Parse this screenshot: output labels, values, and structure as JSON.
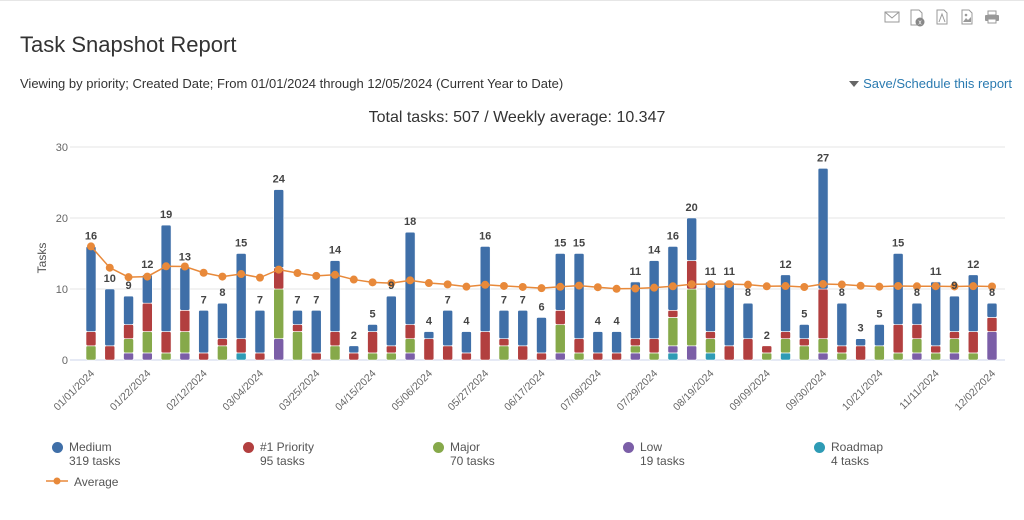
{
  "header": {
    "title": "Task Snapshot Report",
    "subtitle": "Viewing by priority; Created Date; From 01/01/2024 through 12/05/2024 (Current Year to Date)",
    "save_link": "Save/Schedule this report",
    "toolbar_icons": [
      "mail-icon",
      "excel-icon",
      "pdf-icon",
      "image-icon",
      "print-icon"
    ]
  },
  "chart_data": {
    "type": "bar",
    "stacked": true,
    "title": "Total tasks: 507 / Weekly average: 10.347",
    "ylabel": "Tasks",
    "xlabel": "",
    "ylim": [
      0,
      30
    ],
    "yticks": [
      "0",
      "10",
      "20",
      "30"
    ],
    "grid": true,
    "legend_position": "bottom",
    "categories": [
      "01/01/2024",
      "01/08/2024",
      "01/15/2024",
      "01/22/2024",
      "01/29/2024",
      "02/05/2024",
      "02/12/2024",
      "02/19/2024",
      "02/26/2024",
      "03/04/2024",
      "03/11/2024",
      "03/18/2024",
      "03/25/2024",
      "04/01/2024",
      "04/08/2024",
      "04/15/2024",
      "04/22/2024",
      "04/29/2024",
      "05/06/2024",
      "05/13/2024",
      "05/20/2024",
      "05/27/2024",
      "06/03/2024",
      "06/10/2024",
      "06/17/2024",
      "06/24/2024",
      "07/01/2024",
      "07/08/2024",
      "07/15/2024",
      "07/22/2024",
      "07/29/2024",
      "08/05/2024",
      "08/12/2024",
      "08/19/2024",
      "08/26/2024",
      "09/02/2024",
      "09/09/2024",
      "09/16/2024",
      "09/23/2024",
      "09/30/2024",
      "10/07/2024",
      "10/14/2024",
      "10/21/2024",
      "10/28/2024",
      "11/04/2024",
      "11/11/2024",
      "11/18/2024",
      "11/25/2024",
      "12/02/2024"
    ],
    "xtick_labels": [
      "01/01/2024",
      "01/22/2024",
      "02/12/2024",
      "03/04/2024",
      "03/25/2024",
      "04/15/2024",
      "05/06/2024",
      "05/27/2024",
      "06/17/2024",
      "07/08/2024",
      "07/29/2024",
      "08/19/2024",
      "09/09/2024",
      "09/30/2024",
      "10/21/2024",
      "11/11/2024",
      "12/02/2024"
    ],
    "totals": [
      16,
      10,
      9,
      12,
      19,
      13,
      7,
      8,
      15,
      7,
      24,
      7,
      7,
      14,
      2,
      5,
      9,
      18,
      4,
      7,
      4,
      16,
      7,
      7,
      6,
      15,
      15,
      4,
      4,
      11,
      14,
      16,
      20,
      11,
      11,
      8,
      2,
      12,
      5,
      27,
      8,
      3,
      5,
      15,
      8,
      11,
      9,
      12,
      8
    ],
    "series": [
      {
        "name": "Roadmap",
        "summary": "4 tasks",
        "color": "#2e9bb5",
        "values": [
          0,
          0,
          0,
          0,
          0,
          0,
          0,
          0,
          1,
          0,
          0,
          0,
          0,
          0,
          0,
          0,
          0,
          0,
          0,
          0,
          0,
          0,
          0,
          0,
          0,
          0,
          0,
          0,
          0,
          0,
          0,
          1,
          0,
          1,
          0,
          0,
          0,
          1,
          0,
          0,
          0,
          0,
          0,
          0,
          0,
          0,
          0,
          0,
          0
        ]
      },
      {
        "name": "Low",
        "summary": "19 tasks",
        "color": "#7b5ea7",
        "values": [
          0,
          0,
          1,
          1,
          0,
          1,
          0,
          0,
          0,
          0,
          3,
          0,
          0,
          0,
          0,
          0,
          0,
          1,
          0,
          0,
          0,
          0,
          0,
          0,
          0,
          1,
          0,
          0,
          0,
          1,
          0,
          1,
          2,
          0,
          0,
          0,
          0,
          0,
          0,
          1,
          0,
          0,
          0,
          0,
          1,
          0,
          1,
          0,
          4
        ]
      },
      {
        "name": "Major",
        "summary": "70 tasks",
        "color": "#86a94a",
        "values": [
          2,
          0,
          2,
          3,
          1,
          3,
          0,
          2,
          0,
          0,
          7,
          4,
          0,
          2,
          0,
          1,
          1,
          2,
          0,
          0,
          0,
          0,
          2,
          0,
          0,
          4,
          1,
          0,
          0,
          1,
          1,
          4,
          8,
          2,
          0,
          0,
          1,
          2,
          2,
          2,
          1,
          0,
          2,
          1,
          2,
          1,
          2,
          1,
          0
        ]
      },
      {
        "name": "#1 Priority",
        "summary": "95 tasks",
        "color": "#b23f3f",
        "values": [
          2,
          2,
          2,
          4,
          3,
          3,
          1,
          1,
          2,
          1,
          3,
          1,
          1,
          2,
          1,
          3,
          1,
          2,
          3,
          2,
          1,
          4,
          1,
          2,
          1,
          2,
          2,
          1,
          1,
          1,
          2,
          1,
          4,
          1,
          2,
          3,
          1,
          1,
          1,
          7,
          1,
          2,
          0,
          4,
          2,
          1,
          1,
          3,
          2
        ]
      },
      {
        "name": "Medium",
        "summary": "319 tasks",
        "color": "#3f6fa8",
        "values": [
          12,
          8,
          4,
          4,
          15,
          6,
          6,
          5,
          12,
          6,
          11,
          2,
          6,
          10,
          1,
          1,
          7,
          13,
          1,
          5,
          3,
          12,
          4,
          5,
          5,
          8,
          12,
          3,
          3,
          8,
          11,
          9,
          6,
          7,
          9,
          5,
          0,
          8,
          2,
          17,
          6,
          1,
          3,
          10,
          3,
          9,
          5,
          8,
          2
        ]
      },
      {
        "name": "Average",
        "type": "line",
        "color": "#e8893a",
        "values": [
          16.0,
          13.0,
          11.67,
          11.75,
          13.2,
          13.17,
          12.29,
          11.75,
          12.11,
          11.6,
          12.73,
          12.25,
          11.85,
          12.0,
          11.33,
          10.94,
          10.82,
          11.22,
          10.84,
          10.65,
          10.33,
          10.59,
          10.43,
          10.29,
          10.12,
          10.31,
          10.48,
          10.25,
          10.03,
          10.07,
          10.19,
          10.38,
          10.67,
          10.68,
          10.69,
          10.61,
          10.38,
          10.42,
          10.28,
          10.7,
          10.63,
          10.45,
          10.33,
          10.43,
          10.38,
          10.39,
          10.36,
          10.4,
          10.35
        ]
      }
    ]
  }
}
